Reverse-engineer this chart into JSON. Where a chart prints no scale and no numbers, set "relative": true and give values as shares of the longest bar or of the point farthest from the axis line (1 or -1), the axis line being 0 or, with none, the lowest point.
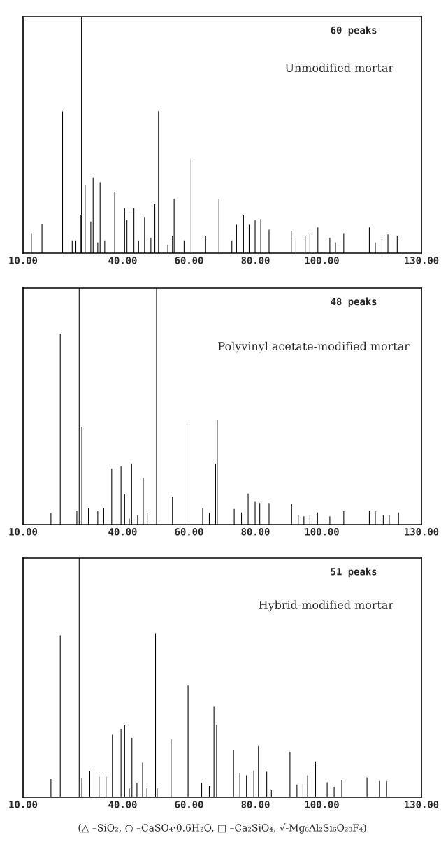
{
  "chart_data": [
    {
      "type": "bar",
      "relative": true,
      "xlim": [
        10,
        130
      ],
      "xticks": [
        {
          "value": 10,
          "label": "10.00"
        },
        {
          "value": 40,
          "label": "40.00"
        },
        {
          "value": 60,
          "label": "60.00"
        },
        {
          "value": 80,
          "label": "80.00"
        },
        {
          "value": 100,
          "label": "100.00"
        },
        {
          "value": 130,
          "label": "130.00"
        }
      ],
      "tick_labels": "x",
      "grid": false,
      "legend": false,
      "annotations": [
        "60 peaks",
        "Unmodified mortar"
      ],
      "series": [
        {
          "color": "#000000",
          "x": [
            12.5,
            15.7,
            21.9,
            24.8,
            25.9,
            27.3,
            27.6,
            28.7,
            30.4,
            31.1,
            32.5,
            33.2,
            34.6,
            37.6,
            40.6,
            41.3,
            43.4,
            44.8,
            46.6,
            48.5,
            49.7,
            50.8,
            53.6,
            55.0,
            55.5,
            58.5,
            60.6,
            65.0,
            69.0,
            72.9,
            74.3,
            76.4,
            78.1,
            79.9,
            81.6,
            84.1,
            90.8,
            92.2,
            95.0,
            96.4,
            98.8,
            102.4,
            104.1,
            106.6,
            114.3,
            116.1,
            118.1,
            119.9,
            122.7
          ],
          "values": [
            0.084,
            0.124,
            0.599,
            0.054,
            0.054,
            0.163,
            1.0,
            0.29,
            0.134,
            0.32,
            0.045,
            0.3,
            0.054,
            0.26,
            0.19,
            0.14,
            0.19,
            0.054,
            0.15,
            0.064,
            0.21,
            0.6,
            0.035,
            0.074,
            0.23,
            0.054,
            0.4,
            0.074,
            0.23,
            0.054,
            0.12,
            0.16,
            0.12,
            0.14,
            0.144,
            0.099,
            0.094,
            0.064,
            0.074,
            0.079,
            0.109,
            0.064,
            0.045,
            0.084,
            0.109,
            0.045,
            0.074,
            0.079,
            0.074
          ]
        }
      ]
    },
    {
      "type": "bar",
      "relative": true,
      "xlim": [
        10,
        130
      ],
      "xticks": [
        {
          "value": 10,
          "label": "10.00"
        },
        {
          "value": 40,
          "label": "40.00"
        },
        {
          "value": 60,
          "label": "60.00"
        },
        {
          "value": 80,
          "label": "80.00"
        },
        {
          "value": 100,
          "label": "100.00"
        },
        {
          "value": 130,
          "label": "130.00"
        }
      ],
      "tick_labels": "x",
      "grid": false,
      "legend": false,
      "annotations": [
        "48 peaks",
        "Polyvinyl acetate-modified mortar"
      ],
      "series": [
        {
          "color": "#000000",
          "x": [
            18.4,
            21.2,
            26.2,
            26.9,
            27.7,
            29.7,
            32.5,
            34.3,
            36.7,
            39.5,
            40.6,
            42.0,
            42.7,
            44.5,
            46.2,
            47.4,
            50.2,
            55.0,
            60.0,
            64.1,
            66.1,
            68.0,
            68.5,
            73.6,
            75.8,
            77.8,
            79.9,
            81.3,
            84.1,
            90.9,
            92.9,
            94.6,
            96.4,
            98.7,
            102.4,
            106.6,
            114.3,
            116.1,
            118.5,
            120.3,
            123.1
          ],
          "values": [
            0.049,
            0.808,
            0.059,
            1.0,
            0.414,
            0.069,
            0.059,
            0.069,
            0.236,
            0.246,
            0.128,
            0.025,
            0.256,
            0.039,
            0.197,
            0.049,
            1.0,
            0.118,
            0.433,
            0.069,
            0.049,
            0.256,
            0.443,
            0.066,
            0.051,
            0.131,
            0.096,
            0.091,
            0.091,
            0.086,
            0.04,
            0.035,
            0.04,
            0.051,
            0.035,
            0.056,
            0.056,
            0.056,
            0.04,
            0.04,
            0.051
          ]
        }
      ]
    },
    {
      "type": "bar",
      "relative": true,
      "xlim": [
        10,
        130
      ],
      "xticks": [
        {
          "value": 10,
          "label": "10.00"
        },
        {
          "value": 40,
          "label": "40.00"
        },
        {
          "value": 60,
          "label": "60.00"
        },
        {
          "value": 80,
          "label": "80.00"
        },
        {
          "value": 100,
          "label": "100.00"
        },
        {
          "value": 130,
          "label": "130.00"
        }
      ],
      "tick_labels": "x",
      "grid": false,
      "legend": false,
      "annotations": [
        "51 peaks",
        "Hybrid-modified mortar",
        "(△ –SiO₂, ○ –CaSO₄·0.6H₂O, □ –Ca₂SiO₄, √-Mg₆Al₂Si₆O₂₀F₄)"
      ],
      "series": [
        {
          "color": "#000000",
          "x": [
            18.4,
            21.2,
            26.9,
            27.7,
            30.1,
            32.9,
            35.0,
            36.9,
            39.5,
            40.6,
            42.0,
            42.8,
            44.3,
            46.0,
            47.3,
            49.9,
            50.4,
            54.6,
            59.7,
            63.8,
            66.1,
            67.5,
            68.3,
            73.4,
            75.3,
            77.3,
            79.5,
            80.9,
            83.4,
            84.8,
            90.4,
            92.5,
            94.3,
            95.7,
            98.1,
            101.6,
            103.7,
            106.0,
            113.6,
            117.4,
            119.5
          ],
          "values": [
            0.076,
            0.677,
            1.0,
            0.081,
            0.11,
            0.086,
            0.086,
            0.262,
            0.286,
            0.301,
            0.037,
            0.247,
            0.061,
            0.145,
            0.037,
            0.686,
            0.037,
            0.242,
            0.467,
            0.061,
            0.047,
            0.379,
            0.303,
            0.199,
            0.102,
            0.092,
            0.112,
            0.214,
            0.107,
            0.029,
            0.19,
            0.053,
            0.058,
            0.092,
            0.15,
            0.063,
            0.044,
            0.073,
            0.083,
            0.068,
            0.068
          ]
        }
      ]
    }
  ]
}
